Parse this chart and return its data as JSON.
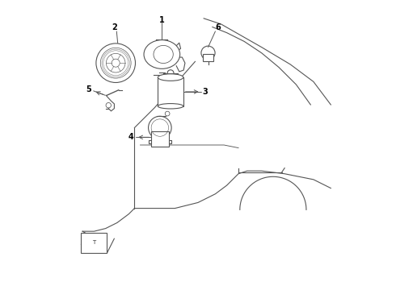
{
  "bg_color": "#ffffff",
  "line_color": "#555555",
  "text_color": "#000000",
  "lw": 0.8
}
